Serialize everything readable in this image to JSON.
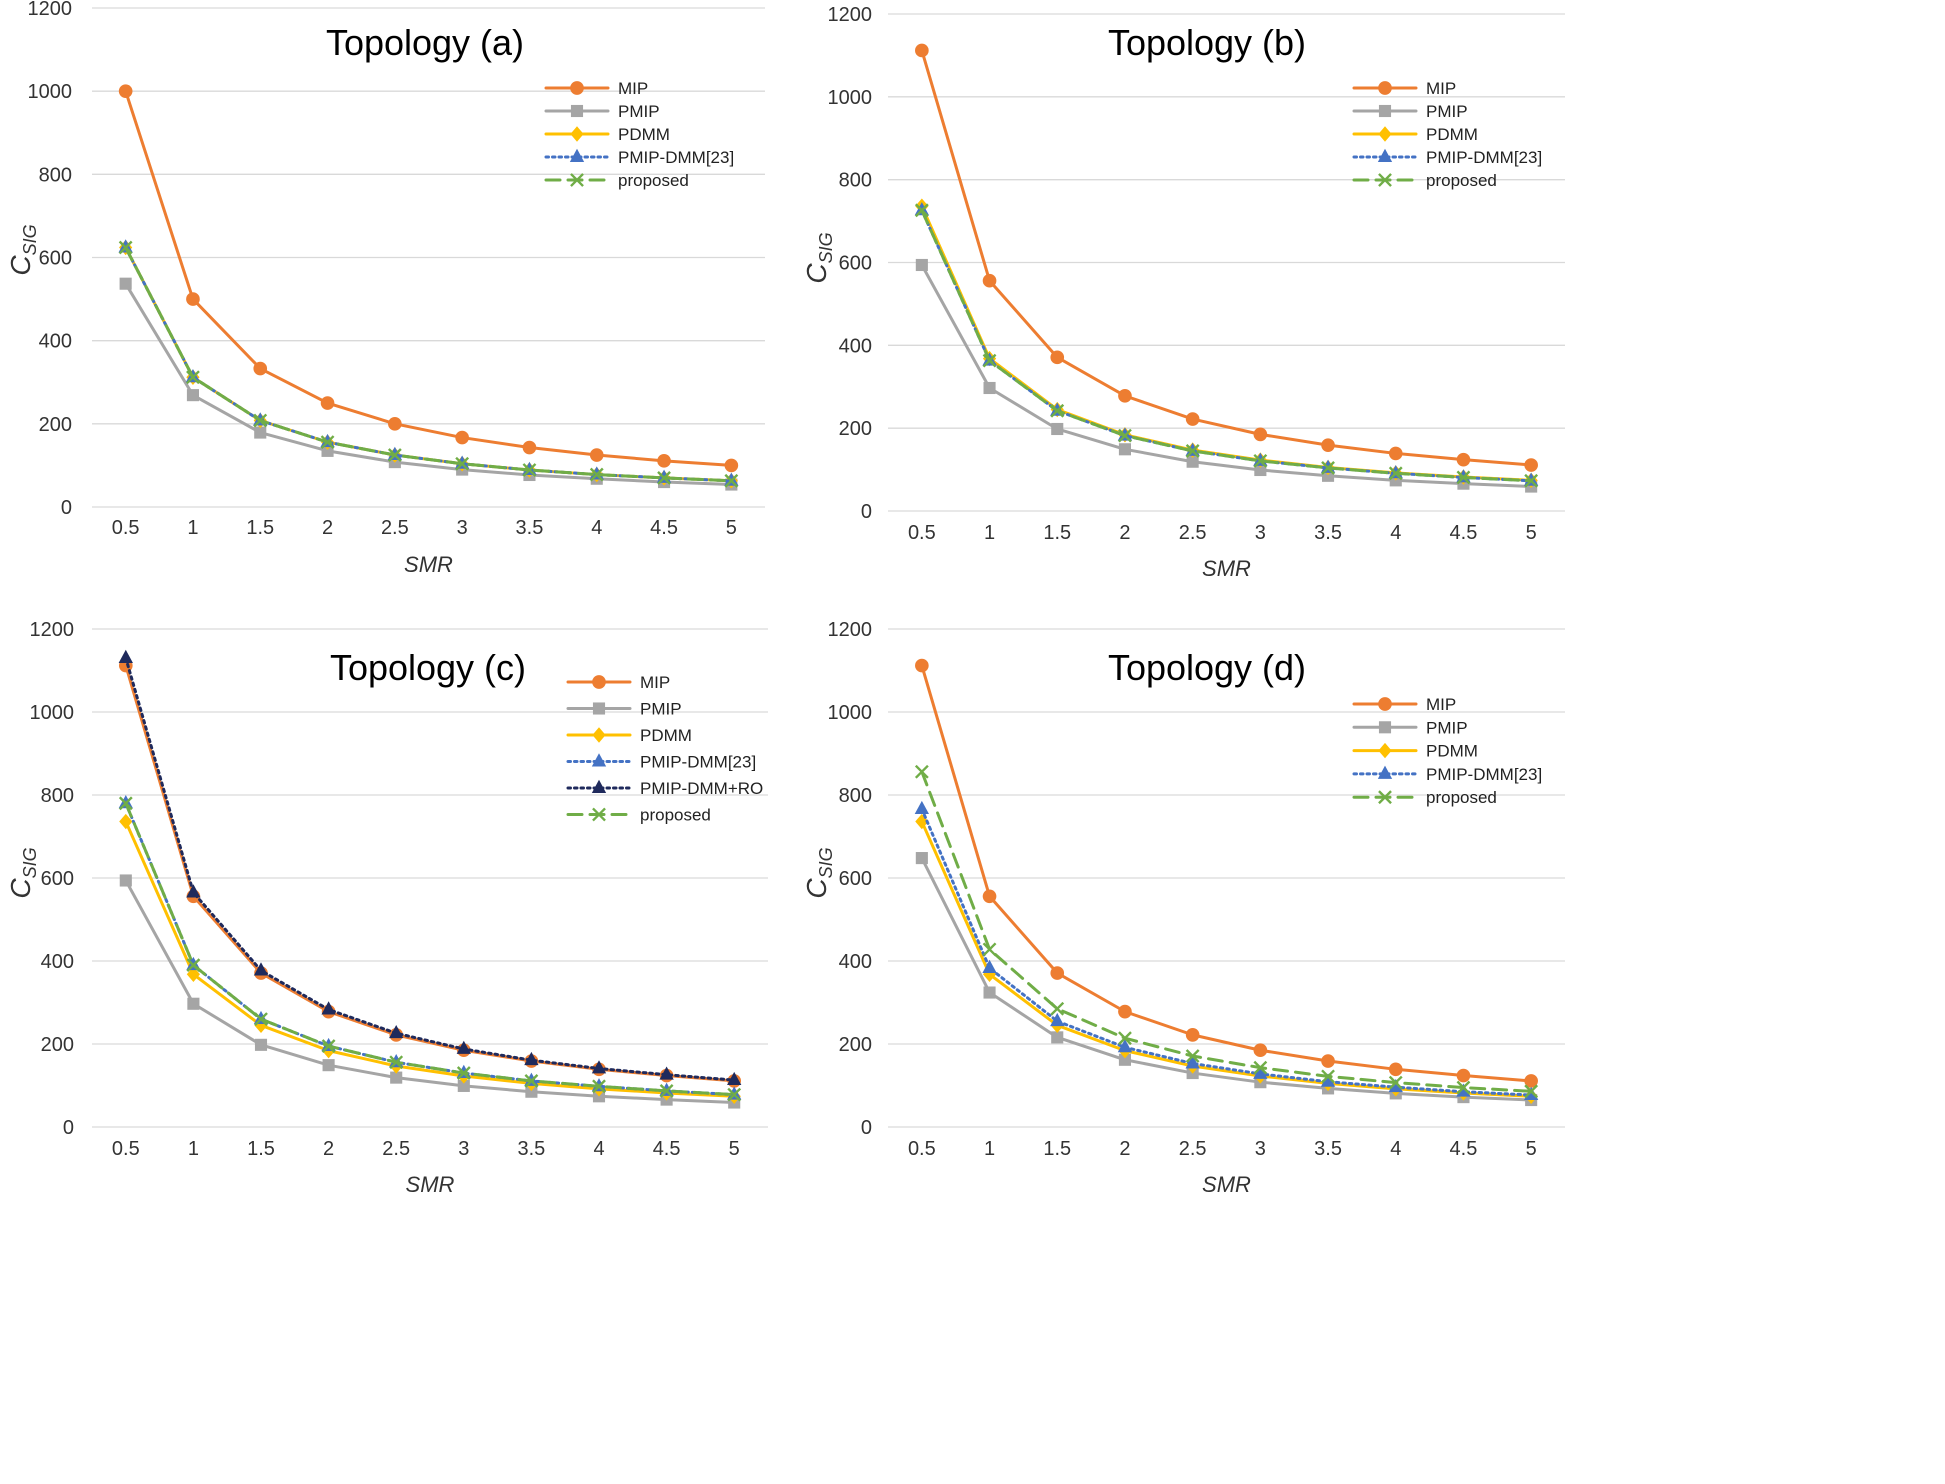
{
  "chart_data": [
    {
      "type": "line",
      "title": "Topology (a)",
      "xlabel": "SMR",
      "ylabel": "C",
      "ylabel_sub": "SIG",
      "ylim": [
        0,
        1200
      ],
      "yticks": [
        0,
        200,
        400,
        600,
        800,
        1000,
        1200
      ],
      "categories": [
        "0.5",
        "1",
        "1.5",
        "2",
        "2.5",
        "3",
        "3.5",
        "4",
        "4.5",
        "5"
      ],
      "legend_position": "top-right",
      "series": [
        {
          "name": "MIP",
          "color": "#ED7D31",
          "dash": "solid",
          "marker": "circle",
          "values": [
            1000,
            500,
            333,
            250,
            200,
            167,
            143,
            125,
            111,
            100
          ]
        },
        {
          "name": "PMIP",
          "color": "#A5A5A5",
          "dash": "solid",
          "marker": "square",
          "values": [
            537,
            269,
            179,
            135,
            108,
            90,
            77,
            68,
            60,
            54
          ]
        },
        {
          "name": "PDMM",
          "color": "#FFC000",
          "dash": "solid",
          "marker": "diamond",
          "values": [
            624,
            312,
            208,
            156,
            125,
            104,
            89,
            78,
            70,
            63
          ]
        },
        {
          "name": "PMIP-DMM[23]",
          "color": "#4472C4",
          "dash": "dotted",
          "marker": "triangle",
          "values": [
            624,
            312,
            208,
            156,
            125,
            104,
            89,
            78,
            70,
            63
          ]
        },
        {
          "name": "proposed",
          "color": "#70AD47",
          "dash": "dashed",
          "marker": "x",
          "values": [
            624,
            312,
            208,
            156,
            125,
            104,
            89,
            78,
            70,
            63
          ]
        }
      ]
    },
    {
      "type": "line",
      "title": "Topology (b)",
      "xlabel": "SMR",
      "ylabel": "C",
      "ylabel_sub": "SIG",
      "ylim": [
        0,
        1200
      ],
      "yticks": [
        0,
        200,
        400,
        600,
        800,
        1000,
        1200
      ],
      "categories": [
        "0.5",
        "1",
        "1.5",
        "2",
        "2.5",
        "3",
        "3.5",
        "4",
        "4.5",
        "5"
      ],
      "legend_position": "top-right",
      "series": [
        {
          "name": "MIP",
          "color": "#ED7D31",
          "dash": "solid",
          "marker": "circle",
          "values": [
            1112,
            556,
            371,
            278,
            222,
            185,
            159,
            139,
            124,
            111
          ]
        },
        {
          "name": "PMIP",
          "color": "#A5A5A5",
          "dash": "solid",
          "marker": "square",
          "values": [
            594,
            297,
            198,
            149,
            119,
            99,
            85,
            74,
            66,
            59
          ]
        },
        {
          "name": "PDMM",
          "color": "#FFC000",
          "dash": "solid",
          "marker": "diamond",
          "values": [
            736,
            368,
            245,
            184,
            147,
            123,
            105,
            92,
            82,
            74
          ]
        },
        {
          "name": "PMIP-DMM[23]",
          "color": "#4472C4",
          "dash": "dotted",
          "marker": "triangle",
          "values": [
            726,
            363,
            242,
            182,
            145,
            121,
            104,
            91,
            81,
            73
          ]
        },
        {
          "name": "proposed",
          "color": "#70AD47",
          "dash": "dashed",
          "marker": "x",
          "values": [
            726,
            363,
            242,
            182,
            145,
            121,
            104,
            91,
            81,
            73
          ]
        }
      ]
    },
    {
      "type": "line",
      "title": "Topology (c)",
      "xlabel": "SMR",
      "ylabel": "C",
      "ylabel_sub": "SIG",
      "ylim": [
        0,
        1200
      ],
      "yticks": [
        0,
        200,
        400,
        600,
        800,
        1000,
        1200
      ],
      "categories": [
        "0.5",
        "1",
        "1.5",
        "2",
        "2.5",
        "3",
        "3.5",
        "4",
        "4.5",
        "5"
      ],
      "legend_position": "top-right",
      "series": [
        {
          "name": "MIP",
          "color": "#ED7D31",
          "dash": "solid",
          "marker": "circle",
          "values": [
            1112,
            556,
            371,
            278,
            222,
            185,
            159,
            139,
            124,
            111
          ]
        },
        {
          "name": "PMIP",
          "color": "#A5A5A5",
          "dash": "solid",
          "marker": "square",
          "values": [
            594,
            297,
            198,
            149,
            119,
            99,
            85,
            74,
            66,
            59
          ]
        },
        {
          "name": "PDMM",
          "color": "#FFC000",
          "dash": "solid",
          "marker": "diamond",
          "values": [
            736,
            368,
            245,
            184,
            147,
            123,
            105,
            92,
            82,
            74
          ]
        },
        {
          "name": "PMIP-DMM[23]",
          "color": "#4472C4",
          "dash": "dotted",
          "marker": "triangle",
          "values": [
            780,
            390,
            260,
            195,
            156,
            130,
            111,
            98,
            87,
            78
          ]
        },
        {
          "name": "PMIP-DMM+RO",
          "color": "#1F2A5C",
          "dash": "dotted",
          "marker": "triangle",
          "values": [
            1130,
            565,
            377,
            283,
            226,
            188,
            161,
            141,
            126,
            113
          ]
        },
        {
          "name": "proposed",
          "color": "#70AD47",
          "dash": "dashed",
          "marker": "x",
          "values": [
            780,
            390,
            260,
            195,
            156,
            130,
            111,
            98,
            87,
            78
          ]
        }
      ]
    },
    {
      "type": "line",
      "title": "Topology (d)",
      "xlabel": "SMR",
      "ylabel": "C",
      "ylabel_sub": "SIG",
      "ylim": [
        0,
        1200
      ],
      "yticks": [
        0,
        200,
        400,
        600,
        800,
        1000,
        1200
      ],
      "categories": [
        "0.5",
        "1",
        "1.5",
        "2",
        "2.5",
        "3",
        "3.5",
        "4",
        "4.5",
        "5"
      ],
      "legend_position": "top-right",
      "series": [
        {
          "name": "MIP",
          "color": "#ED7D31",
          "dash": "solid",
          "marker": "circle",
          "values": [
            1112,
            556,
            371,
            278,
            222,
            185,
            159,
            139,
            124,
            111
          ]
        },
        {
          "name": "PMIP",
          "color": "#A5A5A5",
          "dash": "solid",
          "marker": "square",
          "values": [
            648,
            324,
            216,
            162,
            130,
            108,
            93,
            81,
            72,
            65
          ]
        },
        {
          "name": "PDMM",
          "color": "#FFC000",
          "dash": "solid",
          "marker": "diamond",
          "values": [
            736,
            368,
            245,
            184,
            147,
            123,
            105,
            92,
            82,
            74
          ]
        },
        {
          "name": "PMIP-DMM[23]",
          "color": "#4472C4",
          "dash": "dotted",
          "marker": "triangle",
          "values": [
            766,
            383,
            255,
            192,
            153,
            128,
            109,
            96,
            85,
            77
          ]
        },
        {
          "name": "proposed",
          "color": "#70AD47",
          "dash": "dashed",
          "marker": "x",
          "values": [
            856,
            428,
            285,
            214,
            171,
            143,
            122,
            107,
            95,
            86
          ]
        }
      ]
    }
  ]
}
